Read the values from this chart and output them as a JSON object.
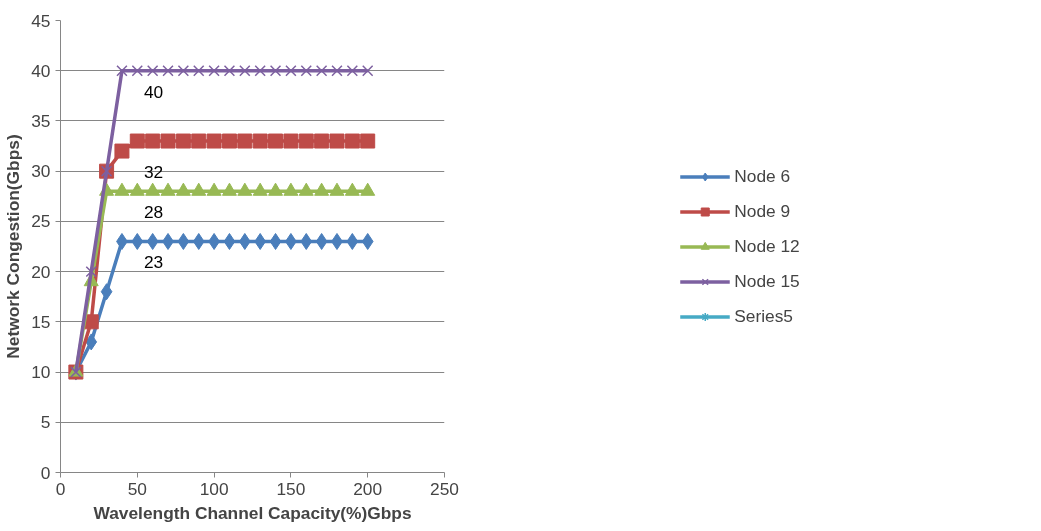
{
  "chart_data": {
    "type": "line",
    "xlabel": "Wavelength Channel Capacity(%)Gbps",
    "ylabel": "Network Congestion(Gbps)",
    "x": [
      10,
      20,
      30,
      40,
      50,
      60,
      70,
      80,
      90,
      100,
      110,
      120,
      130,
      140,
      150,
      160,
      170,
      180,
      190,
      200
    ],
    "xlim": [
      0,
      250
    ],
    "xticks": [
      0,
      50,
      100,
      150,
      200,
      250
    ],
    "ylim": [
      0,
      45
    ],
    "yticks": [
      0,
      5,
      10,
      15,
      20,
      25,
      30,
      35,
      40,
      45
    ],
    "grid": "y",
    "legend": "right",
    "series": [
      {
        "name": "Node 6",
        "color": "#4a7ebb",
        "marker": "diamond",
        "values": [
          10,
          13,
          18,
          23,
          23,
          23,
          23,
          23,
          23,
          23,
          23,
          23,
          23,
          23,
          23,
          23,
          23,
          23,
          23,
          23
        ],
        "value_labels": [
          null,
          null,
          null,
          "23",
          null,
          null,
          null,
          null,
          null,
          null,
          null,
          null,
          null,
          null,
          null,
          null,
          null,
          null,
          null,
          null
        ]
      },
      {
        "name": "Node 9",
        "color": "#be4b48",
        "marker": "square",
        "values": [
          10,
          15,
          30,
          32,
          33,
          33,
          33,
          33,
          33,
          33,
          33,
          33,
          33,
          33,
          33,
          33,
          33,
          33,
          33,
          33
        ],
        "value_labels": [
          null,
          null,
          null,
          "32",
          null,
          null,
          null,
          null,
          null,
          null,
          null,
          null,
          null,
          null,
          null,
          null,
          null,
          null,
          null,
          null
        ]
      },
      {
        "name": "Node 12",
        "color": "#98b954",
        "marker": "triangle",
        "values": [
          10,
          19,
          28,
          28,
          28,
          28,
          28,
          28,
          28,
          28,
          28,
          28,
          28,
          28,
          28,
          28,
          28,
          28,
          28,
          28
        ],
        "value_labels": [
          null,
          null,
          null,
          "28",
          null,
          null,
          null,
          null,
          null,
          null,
          null,
          null,
          null,
          null,
          null,
          null,
          null,
          null,
          null,
          null
        ]
      },
      {
        "name": "Node 15",
        "color": "#7d60a0",
        "marker": "cross",
        "values": [
          10,
          20,
          30,
          40,
          40,
          40,
          40,
          40,
          40,
          40,
          40,
          40,
          40,
          40,
          40,
          40,
          40,
          40,
          40,
          40
        ],
        "value_labels": [
          null,
          null,
          null,
          "40",
          null,
          null,
          null,
          null,
          null,
          null,
          null,
          null,
          null,
          null,
          null,
          null,
          null,
          null,
          null,
          null
        ]
      },
      {
        "name": "Series5",
        "color": "#46aac5",
        "marker": "star",
        "values": [
          null,
          null,
          null,
          null,
          null,
          null,
          null,
          null,
          null,
          null,
          null,
          null,
          null,
          null,
          null,
          null,
          null,
          null,
          null,
          null
        ]
      }
    ]
  }
}
